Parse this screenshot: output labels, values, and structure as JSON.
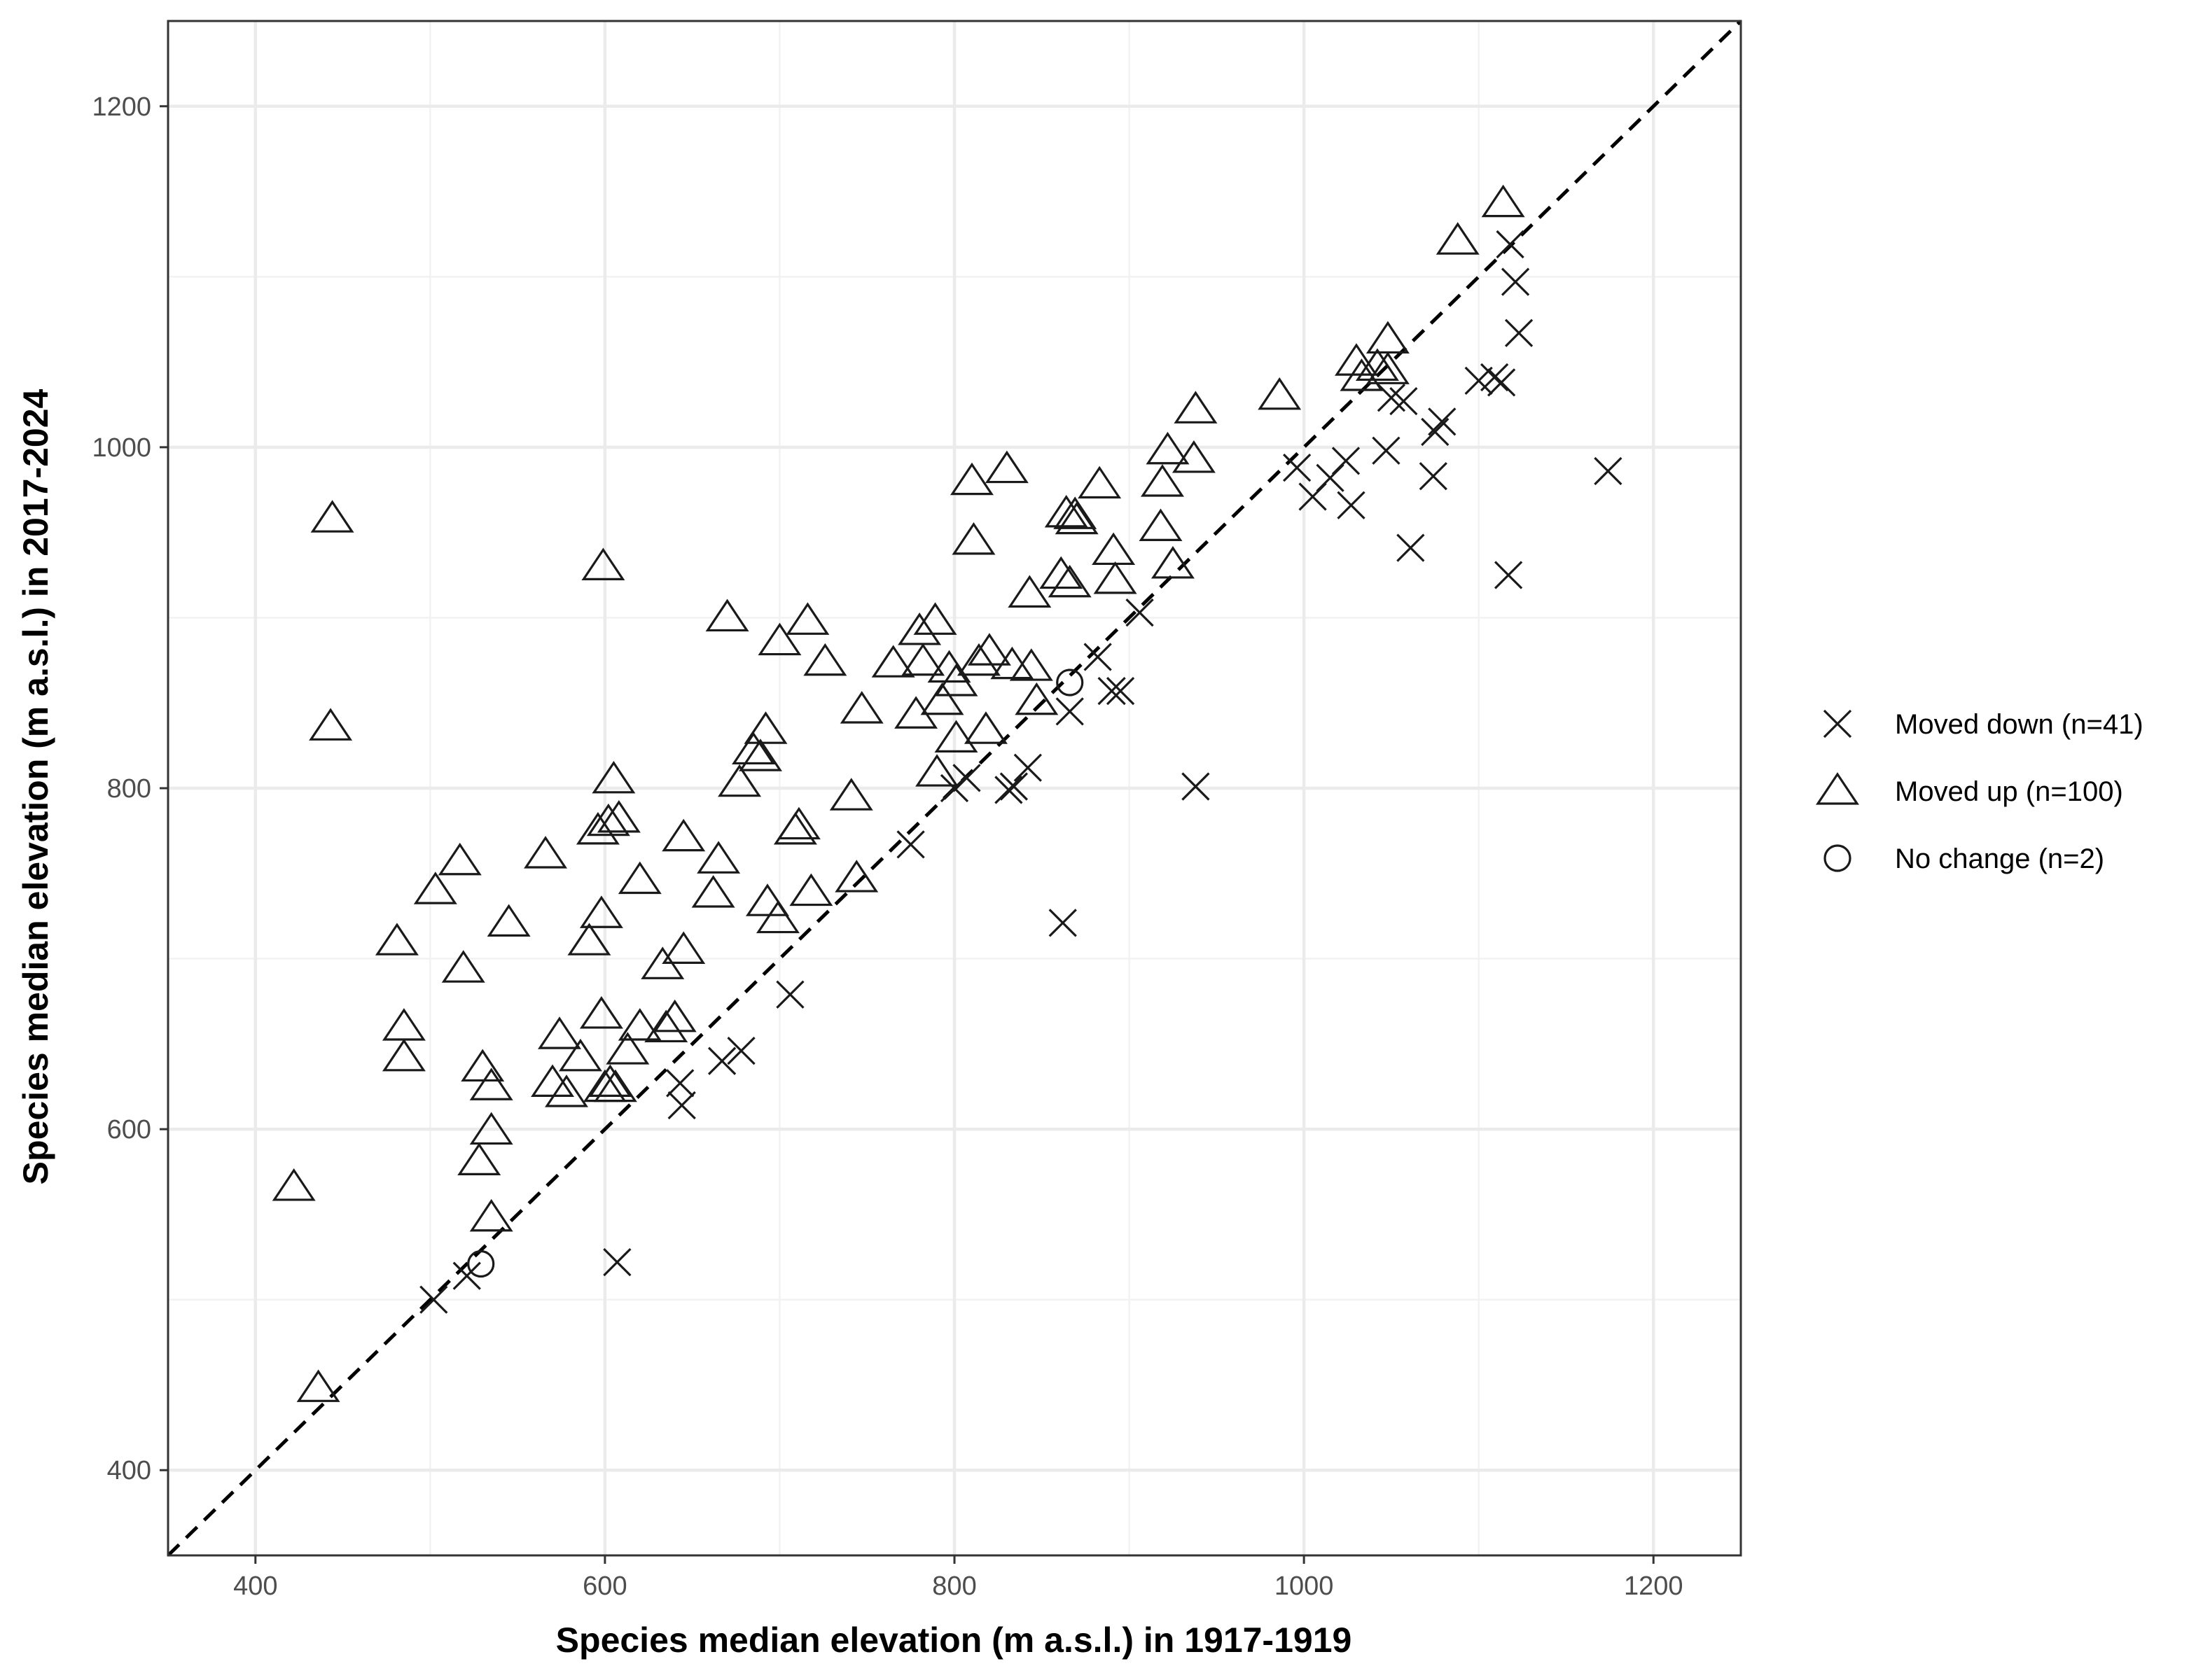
{
  "chart_data": {
    "type": "scatter",
    "xlabel": "Species median elevation (m a.s.l.) in 1917-1919",
    "ylabel": "Species median elevation (m a.s.l.) in 2017-2024",
    "xlim": [
      350,
      1250
    ],
    "ylim": [
      350,
      1250
    ],
    "xticks": [
      400,
      600,
      800,
      1000,
      1200
    ],
    "yticks": [
      400,
      600,
      800,
      1000,
      1200
    ],
    "x_tick_labels": [
      "400",
      "600",
      "800",
      "1000",
      "1200"
    ],
    "y_tick_labels": [
      "400",
      "600",
      "800",
      "1000",
      "1200"
    ],
    "grid": true,
    "reference_line": {
      "type": "identity",
      "style": "dashed",
      "color": "#000000"
    },
    "legend_position": "right",
    "colors": {
      "points": "#1a1a1a",
      "grid_major": "#ebebeb",
      "grid_minor": "#f2f2f2",
      "panel_border": "#333333"
    },
    "series": [
      {
        "name": "Moved down (n=41)",
        "shape": "cross",
        "points": [
          [
            502,
            500
          ],
          [
            521,
            514
          ],
          [
            607,
            522
          ],
          [
            644,
            614
          ],
          [
            643,
            627
          ],
          [
            667,
            640
          ],
          [
            678,
            646
          ],
          [
            706,
            679
          ],
          [
            775,
            767
          ],
          [
            800,
            800
          ],
          [
            807,
            806
          ],
          [
            831,
            799
          ],
          [
            834,
            801
          ],
          [
            842,
            812
          ],
          [
            862,
            721
          ],
          [
            866,
            845
          ],
          [
            882,
            877
          ],
          [
            890,
            857
          ],
          [
            895,
            857
          ],
          [
            906,
            903
          ],
          [
            938,
            801
          ],
          [
            996,
            988
          ],
          [
            1005,
            971
          ],
          [
            1015,
            982
          ],
          [
            1024,
            992
          ],
          [
            1027,
            966
          ],
          [
            1047,
            998
          ],
          [
            1050,
            1029
          ],
          [
            1057,
            1027
          ],
          [
            1061,
            941
          ],
          [
            1074,
            983
          ],
          [
            1075,
            1009
          ],
          [
            1079,
            1015
          ],
          [
            1100,
            1039
          ],
          [
            1109,
            1041
          ],
          [
            1117,
            925
          ],
          [
            1118,
            1119
          ],
          [
            1121,
            1097
          ],
          [
            1123,
            1067
          ],
          [
            1174,
            986
          ],
          [
            1113,
            1038
          ]
        ]
      },
      {
        "name": "Moved up (n=100)",
        "shape": "triangle",
        "points": [
          [
            422,
            566
          ],
          [
            436,
            448
          ],
          [
            443,
            836
          ],
          [
            444,
            958
          ],
          [
            481,
            710
          ],
          [
            485,
            660
          ],
          [
            485,
            642
          ],
          [
            503,
            740
          ],
          [
            517,
            757
          ],
          [
            519,
            694
          ],
          [
            528,
            581
          ],
          [
            530,
            636
          ],
          [
            535,
            599
          ],
          [
            535,
            625
          ],
          [
            535,
            548
          ],
          [
            545,
            721
          ],
          [
            566,
            761
          ],
          [
            570,
            627
          ],
          [
            574,
            655
          ],
          [
            578,
            621
          ],
          [
            586,
            642
          ],
          [
            591,
            710
          ],
          [
            596,
            775
          ],
          [
            598,
            726
          ],
          [
            598,
            667
          ],
          [
            599,
            930
          ],
          [
            600,
            624
          ],
          [
            602,
            780
          ],
          [
            603,
            627
          ],
          [
            605,
            805
          ],
          [
            606,
            624
          ],
          [
            608,
            782
          ],
          [
            613,
            646
          ],
          [
            620,
            746
          ],
          [
            620,
            660
          ],
          [
            633,
            696
          ],
          [
            635,
            659
          ],
          [
            640,
            665
          ],
          [
            645,
            705
          ],
          [
            645,
            771
          ],
          [
            662,
            738
          ],
          [
            665,
            758
          ],
          [
            670,
            900
          ],
          [
            677,
            803
          ],
          [
            685,
            822
          ],
          [
            689,
            818
          ],
          [
            692,
            834
          ],
          [
            693,
            733
          ],
          [
            699,
            723
          ],
          [
            700,
            886
          ],
          [
            709,
            775
          ],
          [
            711,
            778
          ],
          [
            716,
            898
          ],
          [
            718,
            739
          ],
          [
            726,
            874
          ],
          [
            741,
            795
          ],
          [
            744,
            747
          ],
          [
            747,
            846
          ],
          [
            765,
            873
          ],
          [
            778,
            843
          ],
          [
            780,
            892
          ],
          [
            782,
            874
          ],
          [
            789,
            898
          ],
          [
            790,
            809
          ],
          [
            793,
            851
          ],
          [
            797,
            870
          ],
          [
            801,
            829
          ],
          [
            801,
            862
          ],
          [
            810,
            980
          ],
          [
            811,
            945
          ],
          [
            814,
            874
          ],
          [
            818,
            834
          ],
          [
            820,
            880
          ],
          [
            830,
            987
          ],
          [
            833,
            872
          ],
          [
            843,
            914
          ],
          [
            844,
            871
          ],
          [
            847,
            851
          ],
          [
            861,
            925
          ],
          [
            864,
            961
          ],
          [
            866,
            920
          ],
          [
            869,
            960
          ],
          [
            870,
            957
          ],
          [
            883,
            978
          ],
          [
            891,
            939
          ],
          [
            892,
            922
          ],
          [
            918,
            953
          ],
          [
            919,
            979
          ],
          [
            922,
            998
          ],
          [
            925,
            931
          ],
          [
            937,
            993
          ],
          [
            938,
            1022
          ],
          [
            986,
            1030
          ],
          [
            1030,
            1050
          ],
          [
            1033,
            1041
          ],
          [
            1042,
            1047
          ],
          [
            1048,
            1063
          ],
          [
            1088,
            1121
          ],
          [
            1114,
            1143
          ],
          [
            1048,
            1045
          ]
        ]
      },
      {
        "name": "No change (n=2)",
        "shape": "circle",
        "points": [
          [
            529,
            521
          ],
          [
            866,
            862
          ]
        ]
      }
    ]
  }
}
